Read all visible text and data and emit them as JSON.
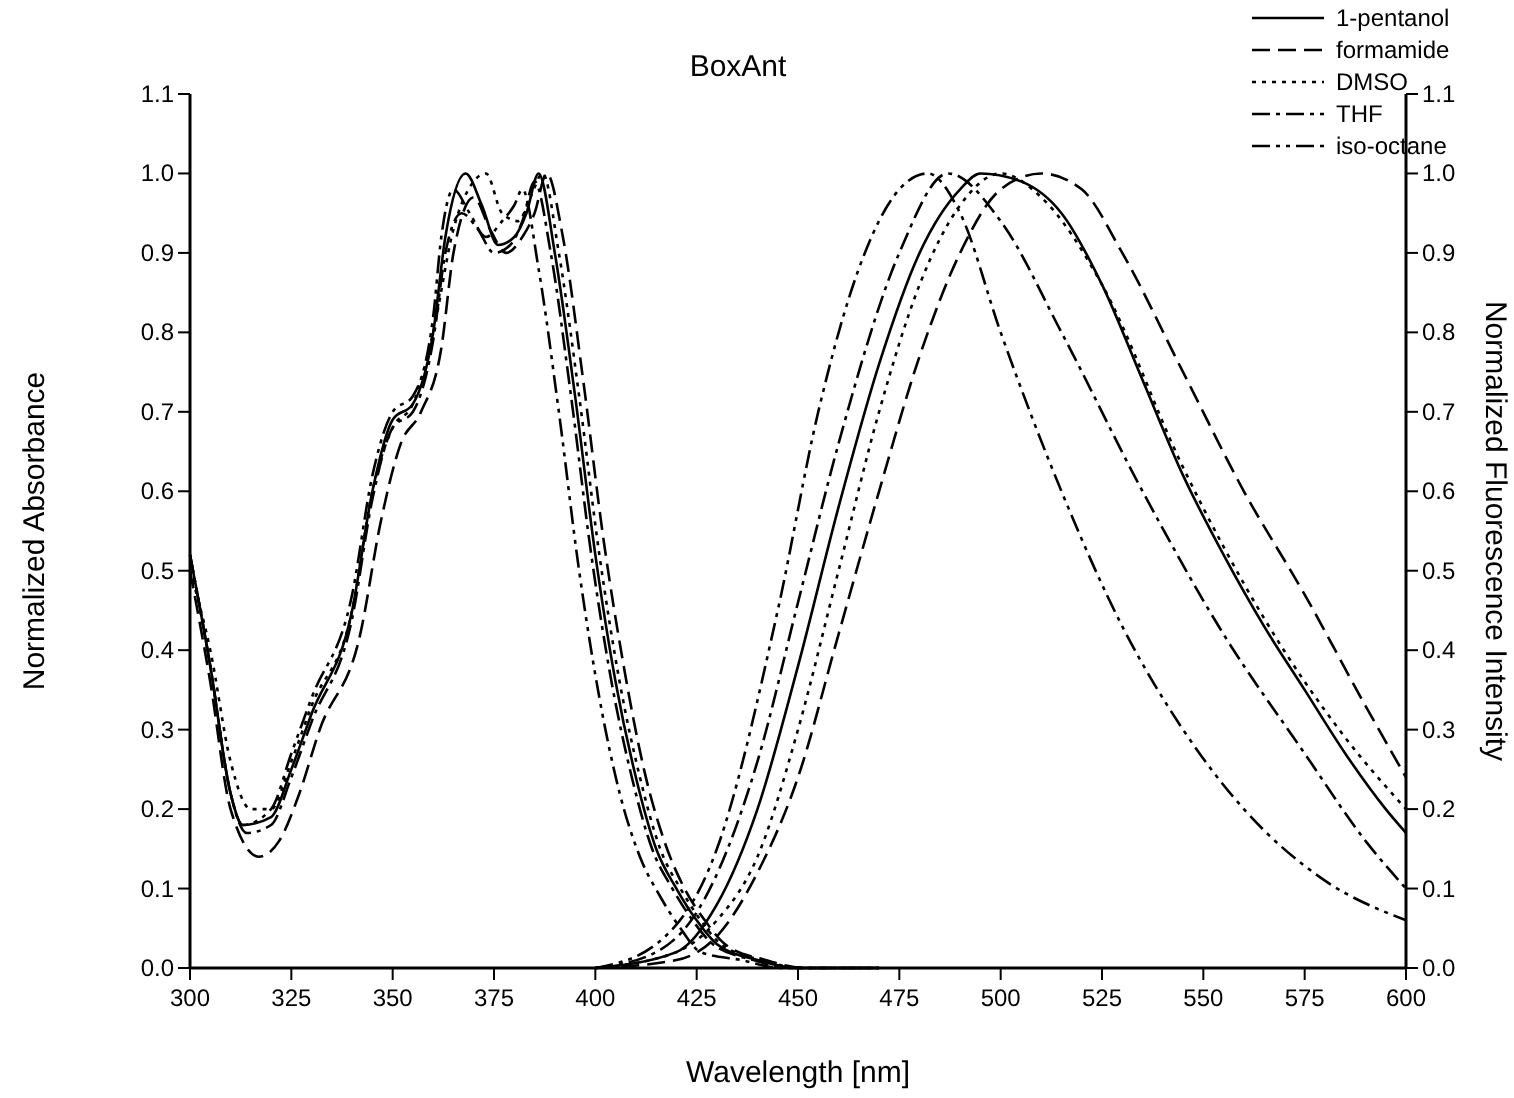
{
  "chart_data": {
    "type": "line",
    "title": "BoxAnt",
    "xlabel": "Wavelength [nm]",
    "ylabel": "Normalized Absorbance",
    "y2label": "Normalized Fluorescence Intensity",
    "xlim": [
      300,
      600
    ],
    "xticks": [
      300,
      325,
      350,
      375,
      400,
      425,
      450,
      475,
      500,
      525,
      550,
      575,
      600
    ],
    "ylim": [
      0,
      1.1
    ],
    "yticks": [
      {
        "value": 0,
        "label": "0.0"
      },
      0.1,
      0.2,
      0.3,
      0.4,
      0.5,
      0.6,
      0.7,
      0.8,
      0.9,
      {
        "value": 1,
        "label": "1.0"
      },
      1.1
    ],
    "y2lim": [
      0,
      1.1
    ],
    "y2ticks": [
      {
        "value": 0,
        "label": "0.0"
      },
      0.1,
      0.2,
      0.3,
      0.4,
      0.5,
      0.6,
      0.7,
      0.8,
      0.9,
      {
        "value": 1,
        "label": "1.0"
      },
      1.1
    ],
    "legend": "top right",
    "grid": false,
    "series": [
      {
        "name": "1-pentanol",
        "color": "#000000",
        "line_style": "solid",
        "x": [
          300,
          305,
          310,
          313,
          320,
          325,
          330,
          340,
          345,
          350,
          355,
          360,
          363,
          368,
          372,
          376,
          380,
          383,
          386,
          390,
          395,
          400,
          405,
          410,
          415,
          420,
          425,
          430,
          440,
          450,
          470
        ],
        "values": [
          0.52,
          0.38,
          0.22,
          0.18,
          0.19,
          0.25,
          0.32,
          0.45,
          0.6,
          0.69,
          0.71,
          0.8,
          0.92,
          1.0,
          0.96,
          0.91,
          0.92,
          0.95,
          1.0,
          0.9,
          0.72,
          0.52,
          0.36,
          0.24,
          0.15,
          0.1,
          0.06,
          0.03,
          0.01,
          0.0,
          0.0
        ]
      },
      {
        "name": "formamide",
        "color": "#000000",
        "line_style": "dashed",
        "x": [
          300,
          305,
          310,
          317,
          322,
          327,
          332,
          342,
          347,
          352,
          357,
          362,
          365,
          370,
          374,
          378,
          382,
          385,
          388,
          392,
          397,
          402,
          407,
          412,
          417,
          422,
          427,
          432,
          442,
          452,
          470
        ],
        "values": [
          0.5,
          0.36,
          0.2,
          0.14,
          0.16,
          0.22,
          0.3,
          0.42,
          0.56,
          0.66,
          0.7,
          0.78,
          0.9,
          0.97,
          0.93,
          0.9,
          0.92,
          0.95,
          1.0,
          0.92,
          0.74,
          0.54,
          0.38,
          0.25,
          0.16,
          0.1,
          0.06,
          0.03,
          0.01,
          0.0,
          0.0
        ]
      },
      {
        "name": "DMSO",
        "color": "#000000",
        "line_style": "dotted",
        "x": [
          300,
          305,
          310,
          315,
          320,
          325,
          330,
          340,
          345,
          350,
          355,
          360,
          365,
          370,
          373,
          377,
          381,
          384,
          387,
          391,
          396,
          401,
          406,
          411,
          416,
          421,
          426,
          431,
          441,
          451,
          470
        ],
        "values": [
          0.5,
          0.4,
          0.26,
          0.2,
          0.2,
          0.26,
          0.33,
          0.45,
          0.6,
          0.68,
          0.71,
          0.8,
          0.93,
          0.99,
          1.0,
          0.95,
          0.94,
          0.97,
          1.0,
          0.9,
          0.72,
          0.52,
          0.36,
          0.24,
          0.15,
          0.1,
          0.06,
          0.03,
          0.01,
          0.0,
          0.0
        ]
      },
      {
        "name": "THF",
        "color": "#000000",
        "line_style": "dashdot",
        "x": [
          300,
          305,
          310,
          314,
          320,
          325,
          330,
          340,
          345,
          350,
          355,
          360,
          363,
          367,
          371,
          375,
          379,
          382,
          385,
          389,
          394,
          399,
          404,
          409,
          414,
          419,
          424,
          429,
          439,
          449,
          470
        ],
        "values": [
          0.52,
          0.38,
          0.22,
          0.17,
          0.18,
          0.24,
          0.31,
          0.44,
          0.59,
          0.68,
          0.7,
          0.79,
          0.9,
          0.95,
          0.93,
          0.9,
          0.91,
          0.94,
          0.99,
          0.9,
          0.72,
          0.52,
          0.36,
          0.24,
          0.15,
          0.1,
          0.06,
          0.03,
          0.01,
          0.0,
          0.0
        ]
      },
      {
        "name": "iso-octane",
        "color": "#000000",
        "line_style": "dashdotdot",
        "x": [
          300,
          305,
          310,
          313,
          320,
          325,
          330,
          340,
          345,
          350,
          355,
          360,
          362,
          365,
          369,
          373,
          377,
          380,
          382,
          386,
          391,
          396,
          401,
          406,
          411,
          416,
          421,
          426,
          436,
          446,
          470
        ],
        "values": [
          0.52,
          0.38,
          0.22,
          0.18,
          0.2,
          0.27,
          0.34,
          0.47,
          0.62,
          0.7,
          0.72,
          0.82,
          0.92,
          0.98,
          0.95,
          0.92,
          0.94,
          0.96,
          0.98,
          0.88,
          0.7,
          0.5,
          0.34,
          0.22,
          0.14,
          0.09,
          0.05,
          0.02,
          0.01,
          0.0,
          0.0
        ]
      },
      {
        "color": "#000000",
        "line_style": "solid",
        "x": [
          400,
          420,
          430,
          440,
          450,
          460,
          470,
          480,
          490,
          495,
          505,
          515,
          525,
          535,
          545,
          555,
          565,
          575,
          585,
          595,
          600
        ],
        "values": [
          0.0,
          0.02,
          0.08,
          0.2,
          0.38,
          0.58,
          0.76,
          0.9,
          0.98,
          1.0,
          0.99,
          0.95,
          0.86,
          0.74,
          0.62,
          0.52,
          0.43,
          0.35,
          0.27,
          0.2,
          0.17
        ]
      },
      {
        "color": "#000000",
        "line_style": "dashed",
        "x": [
          400,
          420,
          430,
          440,
          450,
          460,
          470,
          480,
          490,
          500,
          510,
          520,
          530,
          545,
          560,
          575,
          590,
          600
        ],
        "values": [
          0.0,
          0.01,
          0.04,
          0.12,
          0.24,
          0.42,
          0.6,
          0.77,
          0.9,
          0.98,
          1.0,
          0.98,
          0.9,
          0.75,
          0.6,
          0.47,
          0.33,
          0.24
        ]
      },
      {
        "color": "#000000",
        "line_style": "dotted",
        "x": [
          400,
          420,
          430,
          440,
          450,
          460,
          470,
          480,
          490,
          500,
          510,
          525,
          545,
          565,
          585,
          600
        ],
        "values": [
          0.0,
          0.02,
          0.06,
          0.14,
          0.3,
          0.5,
          0.7,
          0.86,
          0.96,
          1.0,
          0.97,
          0.86,
          0.63,
          0.44,
          0.29,
          0.2
        ]
      },
      {
        "color": "#000000",
        "line_style": "dashdot",
        "x": [
          400,
          415,
          425,
          440,
          450,
          460,
          475,
          487,
          500,
          515,
          535,
          555,
          575,
          590,
          600
        ],
        "values": [
          0.0,
          0.02,
          0.07,
          0.26,
          0.46,
          0.66,
          0.9,
          1.0,
          0.94,
          0.8,
          0.6,
          0.42,
          0.27,
          0.16,
          0.1
        ]
      },
      {
        "color": "#000000",
        "line_style": "dashdotdot",
        "x": [
          400,
          415,
          430,
          445,
          455,
          465,
          475,
          482,
          490,
          500,
          515,
          530,
          545,
          560,
          580,
          600
        ],
        "values": [
          0.0,
          0.03,
          0.15,
          0.45,
          0.7,
          0.88,
          0.98,
          1.0,
          0.95,
          0.8,
          0.6,
          0.43,
          0.3,
          0.2,
          0.11,
          0.06
        ]
      }
    ]
  }
}
